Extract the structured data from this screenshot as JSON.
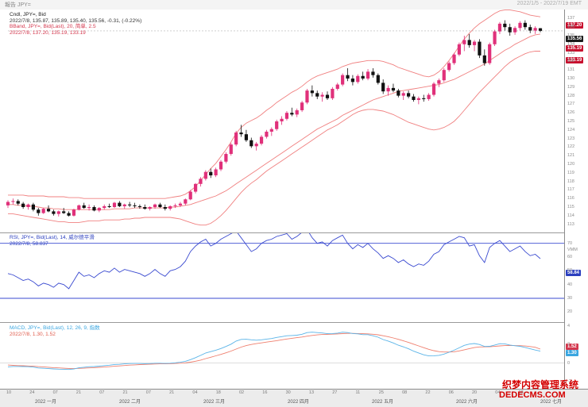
{
  "window": {
    "title": "報告 JPY=",
    "timestamp": "2022/1/5 - 2022/7/19 EMT"
  },
  "price_pane": {
    "legend": [
      {
        "text": "Cndl, JPY=, Bid",
        "color": "#222222"
      },
      {
        "text": "2022/7/8, 135.87, 135.89, 135.40, 135.56, -0.31, (-0.22%)",
        "color": "#333333"
      },
      {
        "text": "BBand, JPY=, Bid(Last), 20, 简单, 2.5",
        "color": "#d4374d"
      },
      {
        "text": "2022/7/8, 137.20, 135.19, 133.19",
        "color": "#d4374d"
      }
    ],
    "axis_ticks": [
      "137",
      "136",
      "135",
      "134",
      "133",
      "132",
      "131",
      "130",
      "129",
      "128",
      "127",
      "126",
      "125",
      "124",
      "123",
      "122",
      "121",
      "120",
      "119",
      "118",
      "117",
      "116",
      "115",
      "114",
      "113"
    ],
    "badges": [
      {
        "text": "137.20",
        "color": "#c8102e"
      },
      {
        "text": "135.56",
        "color": "#1a1a1a"
      },
      {
        "text": "135.19",
        "color": "#c8102e"
      },
      {
        "text": "133.19",
        "color": "#c8102e"
      }
    ]
  },
  "rsi_pane": {
    "legend": [
      {
        "text": "RSI, JPY=, Bid(Last), 14, 威尔德平滑",
        "color": "#2b3fbf"
      },
      {
        "text": "2022/7/8, 58.837",
        "color": "#2b3fbf"
      }
    ],
    "axis_ticks": [
      "70",
      "60",
      "50",
      "40",
      "30",
      "20"
    ],
    "axis_unit": "VMM",
    "badge": {
      "text": "58.84",
      "color": "#2b3fbf"
    }
  },
  "macd_pane": {
    "legend": [
      {
        "text": "MACD, JPY=, Bid(Last), 12, 26, 9, 指数",
        "color": "#3aa6e0"
      },
      {
        "text": "2022/7/8, 1.30, 1.52",
        "color": "#e05a4a"
      }
    ],
    "axis_ticks": [
      "4",
      "2",
      "0",
      "-2"
    ],
    "badges": [
      {
        "text": "1.52",
        "color": "#d4374d"
      },
      {
        "text": "1.30",
        "color": "#3aa6e0"
      }
    ]
  },
  "time_axis": {
    "days": [
      "10",
      "24",
      "07",
      "21",
      "07",
      "21",
      "07",
      "21",
      "04",
      "18",
      "02",
      "16",
      "30",
      "13",
      "27",
      "11",
      "25",
      "08",
      "22",
      "06",
      "20",
      "04",
      "18"
    ],
    "months": [
      "2022 一月",
      "2022 二月",
      "2022 三月",
      "2022 四月",
      "2022 五月",
      "2022 六月",
      "2022 七月"
    ]
  },
  "watermark": {
    "cn": "织梦内容管理系统",
    "en": "DEDECMS.COM"
  },
  "colors": {
    "up": "#e0307a",
    "down": "#111111",
    "bb": "#f08080",
    "rsi": "#3a4ad0",
    "macd": "#5ab4e8",
    "signal": "#ef7f6e"
  },
  "chart_data": {
    "type": "candlestick",
    "ohlc": [
      [
        115.2,
        115.8,
        114.9,
        115.6
      ],
      [
        115.6,
        116.0,
        115.3,
        115.7
      ],
      [
        115.7,
        115.9,
        115.2,
        115.4
      ],
      [
        115.4,
        115.6,
        114.8,
        115.0
      ],
      [
        115.0,
        115.4,
        114.7,
        115.3
      ],
      [
        115.3,
        115.5,
        114.5,
        114.7
      ],
      [
        114.7,
        114.9,
        114.0,
        114.3
      ],
      [
        114.3,
        114.9,
        114.2,
        114.8
      ],
      [
        114.8,
        115.2,
        114.4,
        114.5
      ],
      [
        114.5,
        114.7,
        114.0,
        114.2
      ],
      [
        114.2,
        114.6,
        113.9,
        114.5
      ],
      [
        114.5,
        114.9,
        114.2,
        114.3
      ],
      [
        114.3,
        114.5,
        113.9,
        114.0
      ],
      [
        114.0,
        114.8,
        113.9,
        114.7
      ],
      [
        114.7,
        115.3,
        114.6,
        115.2
      ],
      [
        115.2,
        115.5,
        114.8,
        114.9
      ],
      [
        114.9,
        115.3,
        114.6,
        115.0
      ],
      [
        115.0,
        115.2,
        114.5,
        114.6
      ],
      [
        114.6,
        115.0,
        114.4,
        114.9
      ],
      [
        114.9,
        115.3,
        114.7,
        115.1
      ],
      [
        115.1,
        115.4,
        114.9,
        115.0
      ],
      [
        115.0,
        115.6,
        114.9,
        115.5
      ],
      [
        115.5,
        115.7,
        115.0,
        115.1
      ],
      [
        115.1,
        115.4,
        114.8,
        115.3
      ],
      [
        115.3,
        115.6,
        115.0,
        115.2
      ],
      [
        115.2,
        115.5,
        114.9,
        115.1
      ],
      [
        115.1,
        115.3,
        114.8,
        115.0
      ],
      [
        115.0,
        115.3,
        114.7,
        114.8
      ],
      [
        114.8,
        115.1,
        114.6,
        115.0
      ],
      [
        115.0,
        115.4,
        114.8,
        115.3
      ],
      [
        115.3,
        115.5,
        114.9,
        115.0
      ],
      [
        115.0,
        115.3,
        114.6,
        114.8
      ],
      [
        114.8,
        115.2,
        114.6,
        115.1
      ],
      [
        115.1,
        115.4,
        114.9,
        115.2
      ],
      [
        115.2,
        115.6,
        115.0,
        115.4
      ],
      [
        115.4,
        116.0,
        115.2,
        115.9
      ],
      [
        115.9,
        117.0,
        115.8,
        116.8
      ],
      [
        116.8,
        117.8,
        116.6,
        117.7
      ],
      [
        117.7,
        118.5,
        117.4,
        118.3
      ],
      [
        118.3,
        119.3,
        118.1,
        119.1
      ],
      [
        119.1,
        119.5,
        118.4,
        118.7
      ],
      [
        118.7,
        119.6,
        118.5,
        119.4
      ],
      [
        119.4,
        120.5,
        119.2,
        120.3
      ],
      [
        120.3,
        121.4,
        120.1,
        121.2
      ],
      [
        121.2,
        122.5,
        121.0,
        122.3
      ],
      [
        122.3,
        123.9,
        122.1,
        123.7
      ],
      [
        123.7,
        124.6,
        123.2,
        123.5
      ],
      [
        123.5,
        124.0,
        122.6,
        122.8
      ],
      [
        122.8,
        123.1,
        121.9,
        122.1
      ],
      [
        122.1,
        122.6,
        121.6,
        122.4
      ],
      [
        122.4,
        123.4,
        122.2,
        123.2
      ],
      [
        123.2,
        124.0,
        123.0,
        123.8
      ],
      [
        123.8,
        124.3,
        123.3,
        124.1
      ],
      [
        124.1,
        125.2,
        123.9,
        125.0
      ],
      [
        125.0,
        125.6,
        124.6,
        125.3
      ],
      [
        125.3,
        126.2,
        125.1,
        126.0
      ],
      [
        126.0,
        126.6,
        125.6,
        125.8
      ],
      [
        125.8,
        126.5,
        125.5,
        126.3
      ],
      [
        126.3,
        127.4,
        126.1,
        127.2
      ],
      [
        127.2,
        128.8,
        127.0,
        128.6
      ],
      [
        128.6,
        129.2,
        127.9,
        128.3
      ],
      [
        128.3,
        128.6,
        127.6,
        127.9
      ],
      [
        127.9,
        128.4,
        127.3,
        128.1
      ],
      [
        128.1,
        128.5,
        127.5,
        127.7
      ],
      [
        127.7,
        129.0,
        127.5,
        128.8
      ],
      [
        128.8,
        129.5,
        128.6,
        129.3
      ],
      [
        129.3,
        130.6,
        129.1,
        130.4
      ],
      [
        130.4,
        131.2,
        129.7,
        130.0
      ],
      [
        130.0,
        130.4,
        129.2,
        129.6
      ],
      [
        129.6,
        130.5,
        129.4,
        130.3
      ],
      [
        130.3,
        130.8,
        129.8,
        130.0
      ],
      [
        130.0,
        131.1,
        129.8,
        130.8
      ],
      [
        130.8,
        131.2,
        130.1,
        130.4
      ],
      [
        130.4,
        130.6,
        129.3,
        129.5
      ],
      [
        129.5,
        129.9,
        128.2,
        128.5
      ],
      [
        128.5,
        129.2,
        128.0,
        128.9
      ],
      [
        128.9,
        129.4,
        128.4,
        128.6
      ],
      [
        128.6,
        128.8,
        127.8,
        128.0
      ],
      [
        128.0,
        128.5,
        127.5,
        128.3
      ],
      [
        128.3,
        128.6,
        127.7,
        127.9
      ],
      [
        127.9,
        128.2,
        127.3,
        127.5
      ],
      [
        127.5,
        127.9,
        127.0,
        127.7
      ],
      [
        127.7,
        128.1,
        127.3,
        127.6
      ],
      [
        127.6,
        128.3,
        127.4,
        128.1
      ],
      [
        128.1,
        129.6,
        127.9,
        129.4
      ],
      [
        129.4,
        130.0,
        129.0,
        129.8
      ],
      [
        129.8,
        131.2,
        129.6,
        131.0
      ],
      [
        131.0,
        132.0,
        130.8,
        131.8
      ],
      [
        131.8,
        133.0,
        131.6,
        132.8
      ],
      [
        132.8,
        134.2,
        132.6,
        134.0
      ],
      [
        134.0,
        135.0,
        133.2,
        134.5
      ],
      [
        134.5,
        135.2,
        133.6,
        133.9
      ],
      [
        133.9,
        134.5,
        133.2,
        134.3
      ],
      [
        134.3,
        134.6,
        132.4,
        132.7
      ],
      [
        132.7,
        133.4,
        131.5,
        131.8
      ],
      [
        131.8,
        134.2,
        131.6,
        134.0
      ],
      [
        134.0,
        135.7,
        133.8,
        135.5
      ],
      [
        135.5,
        136.6,
        135.2,
        136.4
      ],
      [
        136.4,
        136.8,
        135.6,
        136.0
      ],
      [
        136.0,
        136.4,
        135.0,
        135.4
      ],
      [
        135.4,
        136.1,
        135.1,
        135.9
      ],
      [
        135.9,
        136.7,
        135.6,
        136.5
      ],
      [
        136.5,
        136.8,
        135.7,
        136.0
      ],
      [
        136.0,
        136.3,
        135.3,
        135.6
      ],
      [
        135.6,
        136.1,
        135.2,
        135.9
      ],
      [
        135.87,
        135.89,
        135.4,
        135.56
      ]
    ],
    "bb_upper": [
      116.4,
      116.4,
      116.4,
      116.4,
      116.3,
      116.3,
      116.3,
      116.3,
      116.2,
      116.2,
      116.2,
      116.2,
      116.1,
      116.1,
      116.1,
      116.0,
      116.0,
      116.0,
      116.0,
      116.0,
      116.0,
      116.0,
      116.0,
      116.0,
      116.0,
      116.0,
      116.0,
      116.0,
      116.0,
      116.0,
      116.0,
      116.0,
      116.1,
      116.2,
      116.3,
      116.5,
      116.9,
      117.4,
      118.1,
      118.8,
      119.5,
      120.1,
      120.9,
      121.7,
      122.6,
      123.6,
      124.3,
      124.8,
      125.1,
      125.4,
      125.8,
      126.3,
      126.7,
      127.2,
      127.6,
      128.0,
      128.4,
      128.7,
      129.1,
      129.6,
      130.0,
      130.3,
      130.5,
      130.7,
      130.9,
      131.1,
      131.4,
      131.6,
      131.8,
      131.9,
      132.0,
      132.1,
      132.1,
      132.1,
      132.0,
      131.8,
      131.6,
      131.3,
      131.1,
      130.9,
      130.7,
      130.5,
      130.3,
      130.2,
      130.4,
      130.8,
      131.4,
      132.1,
      132.9,
      133.8,
      134.6,
      135.3,
      135.9,
      136.4,
      136.8,
      137.2,
      137.6,
      137.9,
      138.0,
      138.0,
      137.9,
      137.8,
      137.6,
      137.4,
      137.3,
      137.2
    ],
    "bb_mid": [
      115.3,
      115.3,
      115.2,
      115.2,
      115.1,
      115.1,
      115.0,
      114.9,
      114.9,
      114.8,
      114.8,
      114.7,
      114.7,
      114.7,
      114.7,
      114.7,
      114.7,
      114.7,
      114.7,
      114.7,
      114.7,
      114.8,
      114.8,
      114.8,
      114.8,
      114.9,
      114.9,
      114.9,
      114.9,
      114.9,
      114.9,
      114.9,
      115.0,
      115.0,
      115.1,
      115.2,
      115.3,
      115.5,
      115.7,
      115.9,
      116.1,
      116.3,
      116.6,
      116.9,
      117.3,
      117.7,
      118.1,
      118.5,
      118.9,
      119.3,
      119.7,
      120.1,
      120.5,
      120.9,
      121.3,
      121.7,
      122.1,
      122.5,
      122.9,
      123.3,
      123.7,
      124.1,
      124.4,
      124.7,
      125.0,
      125.3,
      125.7,
      126.0,
      126.3,
      126.6,
      126.9,
      127.2,
      127.5,
      127.7,
      127.9,
      128.1,
      128.3,
      128.5,
      128.6,
      128.7,
      128.8,
      128.9,
      129.0,
      129.1,
      129.2,
      129.3,
      129.5,
      129.7,
      129.9,
      130.2,
      130.5,
      130.8,
      131.1,
      131.4,
      131.7,
      132.1,
      132.5,
      132.9,
      133.3,
      133.6,
      134.0,
      134.3,
      134.6,
      134.9,
      135.1,
      135.19
    ],
    "bb_lower": [
      114.2,
      114.2,
      114.1,
      114.0,
      113.9,
      113.8,
      113.7,
      113.6,
      113.5,
      113.4,
      113.3,
      113.3,
      113.2,
      113.2,
      113.2,
      113.3,
      113.4,
      113.4,
      113.4,
      113.5,
      113.5,
      113.5,
      113.5,
      113.6,
      113.6,
      113.7,
      113.7,
      113.8,
      113.8,
      113.8,
      113.8,
      113.8,
      113.8,
      113.7,
      113.6,
      113.4,
      113.2,
      113.0,
      112.9,
      112.9,
      113.1,
      113.5,
      114.0,
      114.6,
      115.3,
      116.0,
      116.7,
      117.3,
      117.8,
      118.2,
      118.7,
      119.2,
      119.6,
      120.0,
      120.4,
      120.8,
      121.2,
      121.6,
      122.0,
      122.4,
      122.8,
      123.2,
      123.6,
      124.0,
      124.3,
      124.6,
      125.0,
      125.4,
      125.8,
      126.1,
      126.3,
      126.4,
      126.4,
      126.3,
      126.2,
      126.0,
      125.8,
      125.5,
      125.2,
      124.9,
      124.7,
      124.5,
      124.3,
      124.1,
      124.0,
      124.1,
      124.3,
      124.6,
      125.0,
      125.6,
      126.3,
      127.0,
      127.7,
      128.4,
      129.0,
      129.6,
      130.2,
      130.8,
      131.4,
      131.9,
      132.3,
      132.6,
      132.9,
      133.1,
      133.2,
      133.19
    ],
    "rsi": [
      48,
      47,
      45,
      43,
      44,
      42,
      39,
      41,
      40,
      38,
      41,
      40,
      37,
      43,
      49,
      46,
      47,
      45,
      48,
      50,
      49,
      52,
      49,
      51,
      50,
      49,
      48,
      46,
      48,
      51,
      48,
      46,
      50,
      51,
      53,
      57,
      64,
      68,
      71,
      73,
      68,
      70,
      73,
      75,
      77,
      79,
      74,
      69,
      64,
      66,
      70,
      72,
      73,
      75,
      76,
      77,
      73,
      75,
      78,
      80,
      74,
      70,
      71,
      68,
      72,
      74,
      76,
      70,
      66,
      69,
      67,
      70,
      66,
      63,
      59,
      61,
      59,
      56,
      58,
      55,
      53,
      55,
      54,
      57,
      62,
      64,
      69,
      71,
      73,
      75,
      74,
      68,
      69,
      61,
      56,
      67,
      70,
      72,
      68,
      64,
      66,
      68,
      64,
      61,
      62,
      58.84
    ],
    "rsi_badge_color": "#2b3fbf",
    "macd": [
      -0.4,
      -0.35,
      -0.35,
      -0.36,
      -0.38,
      -0.42,
      -0.52,
      -0.55,
      -0.58,
      -0.62,
      -0.64,
      -0.65,
      -0.68,
      -0.63,
      -0.5,
      -0.44,
      -0.38,
      -0.36,
      -0.32,
      -0.26,
      -0.22,
      -0.14,
      -0.12,
      -0.07,
      -0.04,
      -0.03,
      -0.03,
      -0.05,
      -0.04,
      0.0,
      0.0,
      -0.03,
      0.0,
      0.04,
      0.1,
      0.2,
      0.38,
      0.6,
      0.84,
      1.1,
      1.25,
      1.4,
      1.58,
      1.8,
      2.05,
      2.38,
      2.56,
      2.58,
      2.52,
      2.48,
      2.52,
      2.6,
      2.66,
      2.78,
      2.86,
      2.96,
      2.98,
      3.02,
      3.12,
      3.3,
      3.34,
      3.3,
      3.26,
      3.18,
      3.2,
      3.24,
      3.34,
      3.3,
      3.2,
      3.16,
      3.08,
      3.08,
      2.96,
      2.8,
      2.55,
      2.38,
      2.18,
      1.94,
      1.76,
      1.55,
      1.3,
      1.1,
      0.9,
      0.78,
      0.8,
      0.84,
      0.98,
      1.18,
      1.4,
      1.66,
      1.92,
      2.06,
      2.12,
      2.02,
      1.8,
      1.82,
      1.96,
      2.1,
      2.08,
      1.96,
      1.88,
      1.82,
      1.7,
      1.55,
      1.42,
      1.3
    ],
    "signal": [
      -0.2,
      -0.23,
      -0.26,
      -0.28,
      -0.3,
      -0.33,
      -0.37,
      -0.4,
      -0.44,
      -0.48,
      -0.51,
      -0.54,
      -0.57,
      -0.58,
      -0.56,
      -0.54,
      -0.51,
      -0.48,
      -0.45,
      -0.41,
      -0.38,
      -0.33,
      -0.29,
      -0.25,
      -0.21,
      -0.18,
      -0.15,
      -0.13,
      -0.11,
      -0.09,
      -0.07,
      -0.06,
      -0.05,
      -0.03,
      -0.0,
      0.04,
      0.11,
      0.21,
      0.33,
      0.49,
      0.64,
      0.79,
      0.95,
      1.12,
      1.31,
      1.52,
      1.73,
      1.9,
      2.02,
      2.11,
      2.19,
      2.27,
      2.35,
      2.43,
      2.52,
      2.61,
      2.68,
      2.75,
      2.82,
      2.91,
      2.99,
      3.05,
      3.09,
      3.11,
      3.13,
      3.15,
      3.19,
      3.21,
      3.21,
      3.2,
      3.18,
      3.16,
      3.12,
      3.06,
      2.96,
      2.85,
      2.72,
      2.57,
      2.41,
      2.24,
      2.05,
      1.86,
      1.67,
      1.49,
      1.35,
      1.25,
      1.2,
      1.2,
      1.23,
      1.32,
      1.44,
      1.57,
      1.68,
      1.75,
      1.76,
      1.77,
      1.81,
      1.86,
      1.9,
      1.91,
      1.9,
      1.89,
      1.85,
      1.79,
      1.72,
      1.52
    ],
    "price_ylim": [
      112.5,
      137.5
    ],
    "rsi_ylim": [
      15,
      75
    ],
    "macd_ylim": [
      -2.5,
      4.0
    ]
  }
}
